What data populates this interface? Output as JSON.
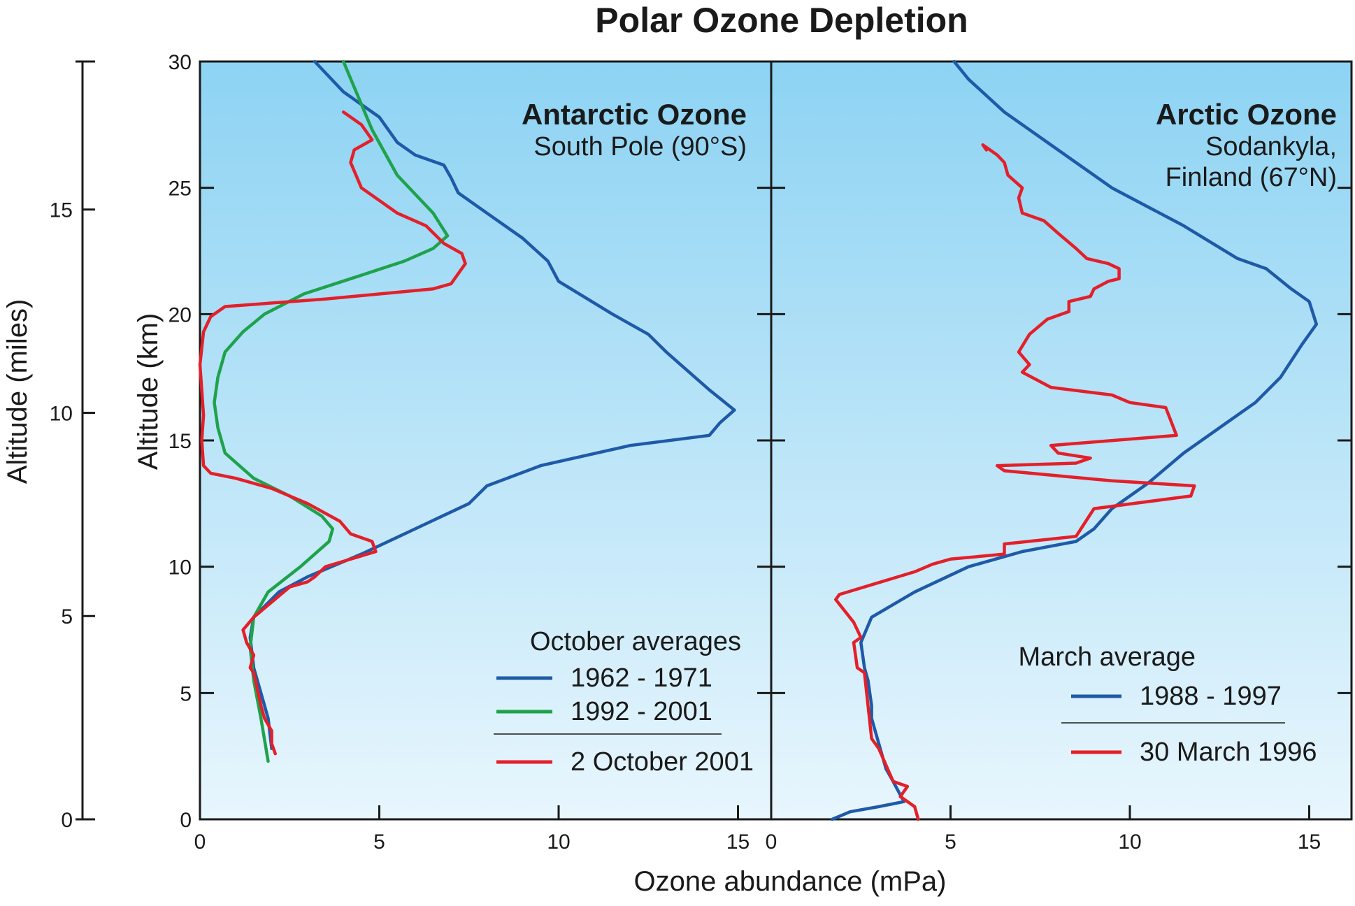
{
  "chart_data": {
    "type": "line",
    "title": "Polar Ozone Depletion",
    "xlabel": "Ozone abundance (mPa)",
    "ylabel_left": "Altitude (miles)",
    "ylabel_inner": "Altitude (km)",
    "ylim_km": [
      0,
      30
    ],
    "yticks_km": [
      0,
      5,
      10,
      15,
      20,
      25,
      30
    ],
    "yticks_miles": [
      0,
      5,
      10,
      15
    ],
    "colors": {
      "blue": "#1e5aa8",
      "green": "#1fa24b",
      "red": "#e3202a",
      "background_top": "#8dd3f3",
      "background_bottom": "#e8f6fd"
    },
    "panels": [
      {
        "title": "Antarctic Ozone",
        "subtitle_lines": [
          "South Pole (90°S)"
        ],
        "xlim": [
          0,
          16
        ],
        "xticks": [
          0,
          5,
          10,
          15
        ],
        "legend_title": "October  averages",
        "series": [
          {
            "name": "1962 - 1971",
            "color": "#1e5aa8",
            "x": [
              2.0,
              1.9,
              1.7,
              1.5,
              1.4,
              1.5,
              2.2,
              3.0,
              4.5,
              6.0,
              7.5,
              8.0,
              9.5,
              12.0,
              14.2,
              14.5,
              14.9,
              14.2,
              13.4,
              13.0,
              12.5,
              11.5,
              10.0,
              9.7,
              9.0,
              8.0,
              7.2,
              7.0,
              6.8,
              6.0,
              5.5,
              5.0,
              4.0,
              3.2
            ],
            "y": [
              2.8,
              4.0,
              5.0,
              6.0,
              7.2,
              8.0,
              9.0,
              9.6,
              10.5,
              11.5,
              12.5,
              13.2,
              14.0,
              14.8,
              15.2,
              15.7,
              16.2,
              17.0,
              18.0,
              18.5,
              19.2,
              20.0,
              21.3,
              22.1,
              23.0,
              24.0,
              24.8,
              25.4,
              25.9,
              26.3,
              26.8,
              27.8,
              28.8,
              30.0
            ]
          },
          {
            "name": "1992 - 2001",
            "color": "#1fa24b",
            "x": [
              1.9,
              1.7,
              1.5,
              1.4,
              1.5,
              1.9,
              2.8,
              3.6,
              3.7,
              3.4,
              2.5,
              1.5,
              0.7,
              0.5,
              0.4,
              0.5,
              0.7,
              1.2,
              1.8,
              2.9,
              4.2,
              5.7,
              6.5,
              6.9,
              6.5,
              5.5,
              4.8,
              4.0
            ],
            "y": [
              2.3,
              4.0,
              5.5,
              6.8,
              8.0,
              9.0,
              10.0,
              11.0,
              11.5,
              12.0,
              12.8,
              13.5,
              14.5,
              15.5,
              16.5,
              17.5,
              18.5,
              19.3,
              20.0,
              20.8,
              21.4,
              22.1,
              22.6,
              23.1,
              24.0,
              25.5,
              27.3,
              30.0
            ]
          },
          {
            "name": "2 October 2001",
            "color": "#e3202a",
            "x": [
              2.1,
              2.0,
              2.0,
              1.8,
              1.7,
              1.5,
              1.4,
              1.5,
              1.3,
              1.2,
              1.5,
              2.5,
              3.0,
              3.2,
              3.5,
              4.9,
              4.8,
              4.2,
              3.9,
              3.0,
              2.0,
              1.0,
              0.3,
              0.1,
              0.05,
              0.1,
              0.0,
              0.1,
              0.3,
              0.7,
              3.5,
              6.5,
              7.0,
              7.4,
              7.3,
              6.8,
              6.3,
              5.5,
              4.5,
              4.2,
              4.3,
              4.8,
              4.5,
              4.0
            ],
            "y": [
              2.6,
              3.0,
              3.5,
              4.0,
              4.5,
              5.8,
              6.0,
              6.5,
              7.0,
              7.5,
              8.0,
              9.2,
              9.4,
              9.6,
              10.0,
              10.6,
              11.0,
              11.3,
              11.8,
              12.5,
              13.1,
              13.5,
              13.7,
              14.0,
              15.0,
              16.0,
              18.0,
              19.3,
              19.9,
              20.3,
              20.6,
              21.0,
              21.2,
              22.0,
              22.4,
              22.8,
              23.5,
              24.0,
              25.0,
              26.0,
              26.5,
              26.9,
              27.5,
              28.0
            ]
          }
        ]
      },
      {
        "title": "Arctic Ozone",
        "subtitle_lines": [
          "Sodankyla,",
          "Finland (67°N)"
        ],
        "xlim": [
          0,
          16
        ],
        "xticks": [
          0,
          5,
          10,
          15
        ],
        "legend_title": "March average",
        "series": [
          {
            "name": "1988 - 1997",
            "color": "#1e5aa8",
            "x": [
              1.7,
              2.2,
              3.0,
              3.7,
              3.4,
              3.2,
              3.0,
              2.8,
              2.8,
              2.7,
              2.6,
              2.5,
              2.8,
              4.0,
              5.5,
              7.0,
              8.5,
              9.0,
              9.5,
              10.5,
              11.5,
              12.5,
              13.5,
              14.2,
              14.8,
              15.2,
              15.0,
              14.5,
              13.8,
              13.0,
              11.5,
              9.5,
              8.0,
              6.5,
              5.5,
              5.1
            ],
            "y": [
              0.0,
              0.3,
              0.5,
              0.7,
              1.5,
              2.0,
              3.0,
              4.0,
              4.5,
              5.5,
              6.0,
              7.0,
              8.0,
              9.0,
              10.0,
              10.6,
              11.0,
              11.5,
              12.3,
              13.3,
              14.5,
              15.5,
              16.5,
              17.5,
              18.8,
              19.6,
              20.5,
              21.0,
              21.8,
              22.2,
              23.5,
              25.0,
              26.5,
              28.0,
              29.3,
              30.0
            ]
          },
          {
            "name": "30 March 1996",
            "color": "#e3202a",
            "x": [
              4.1,
              4.0,
              3.6,
              3.8,
              3.4,
              3.0,
              2.8,
              2.7,
              2.6,
              2.4,
              2.3,
              2.5,
              2.3,
              1.8,
              1.9,
              4.0,
              4.5,
              5.0,
              6.5,
              6.5,
              8.5,
              9.0,
              11.7,
              11.8,
              9.5,
              6.5,
              6.3,
              8.5,
              8.9,
              8.0,
              7.8,
              11.3,
              11.0,
              10.0,
              9.5,
              7.8,
              7.0,
              7.2,
              6.9,
              7.2,
              7.7,
              8.3,
              8.3,
              8.9,
              9.0,
              9.4,
              9.7,
              9.7,
              9.4,
              8.8,
              8.5,
              8.0,
              7.6,
              7.0,
              6.9,
              7.0,
              6.6,
              6.5,
              6.3,
              5.9,
              6.0
            ],
            "y": [
              0.0,
              0.5,
              0.9,
              1.3,
              1.5,
              2.8,
              3.2,
              4.5,
              5.8,
              6.0,
              7.0,
              7.2,
              7.8,
              8.7,
              8.9,
              9.8,
              10.1,
              10.3,
              10.5,
              10.9,
              11.2,
              12.3,
              12.8,
              13.2,
              13.4,
              13.8,
              14.0,
              14.1,
              14.3,
              14.5,
              14.8,
              15.2,
              16.3,
              16.5,
              16.8,
              17.1,
              17.7,
              18.0,
              18.5,
              19.2,
              19.8,
              20.1,
              20.5,
              20.7,
              21.0,
              21.3,
              21.4,
              21.8,
              22.0,
              22.2,
              22.6,
              23.2,
              23.7,
              24.0,
              24.6,
              25.0,
              25.5,
              26.0,
              26.3,
              26.7,
              26.5
            ]
          }
        ]
      }
    ]
  }
}
